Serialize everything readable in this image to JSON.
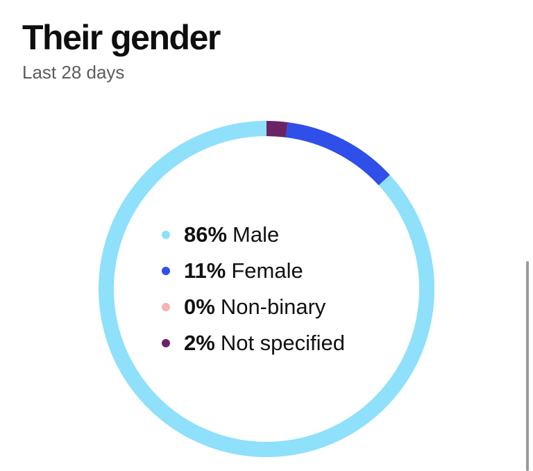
{
  "card": {
    "title": "Their gender",
    "subtitle": "Last 28 days"
  },
  "chart_data": {
    "type": "pie",
    "style": "donut",
    "title": "Their gender",
    "subtitle": "Last 28 days",
    "categories": [
      "Male",
      "Female",
      "Non-binary",
      "Not specified"
    ],
    "values": [
      86,
      11,
      0,
      2
    ],
    "value_labels": [
      "86%",
      "11%",
      "0%",
      "2%"
    ],
    "colors": [
      "#8ee0fb",
      "#2f4fe8",
      "#f4b3b3",
      "#6a2466"
    ],
    "legend_position": "center"
  }
}
